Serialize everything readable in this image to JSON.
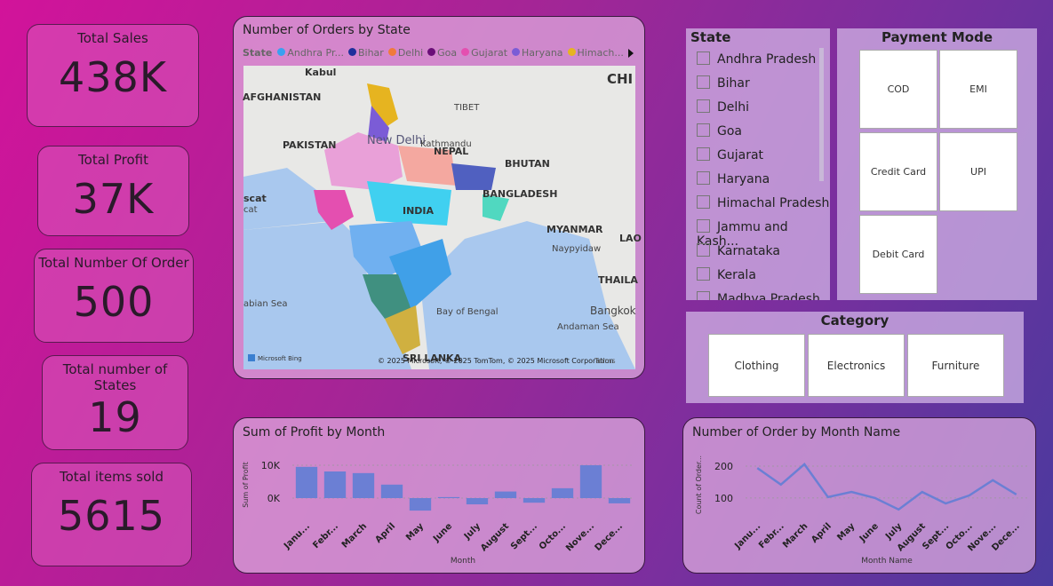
{
  "kpis": [
    {
      "label": "Total Sales",
      "value": "438K"
    },
    {
      "label": "Total Profit",
      "value": "37K"
    },
    {
      "label": "Total Number Of Order",
      "value": "500"
    },
    {
      "label": "Total number of States",
      "value": "19"
    },
    {
      "label": "Total items sold",
      "value": "5615"
    }
  ],
  "map": {
    "title": "Number of Orders by State",
    "legend_title": "State",
    "legend": [
      {
        "name": "Andhra Pr...",
        "color": "#3aa0f0"
      },
      {
        "name": "Bihar",
        "color": "#1f2f9c"
      },
      {
        "name": "Delhi",
        "color": "#f07a3b"
      },
      {
        "name": "Goa",
        "color": "#6a0e78"
      },
      {
        "name": "Gujarat",
        "color": "#e44fb0"
      },
      {
        "name": "Haryana",
        "color": "#7b5cd6"
      },
      {
        "name": "Himach...",
        "color": "#e6b420"
      }
    ],
    "labels": [
      "Kabul",
      "AFGHANISTAN",
      "CHI",
      "TIBET",
      "PAKISTAN",
      "New Delhi",
      "NEPAL",
      "Kathmandu",
      "BHUTAN",
      "BANGLADESH",
      "INDIA",
      "MYANMAR",
      "Naypyidaw",
      "LAO",
      "scat",
      "cat",
      "abian Sea",
      "Bay of Bengal",
      "Andaman Sea",
      "Bangkok",
      "THAILA",
      "SRI LANKA"
    ],
    "bing": "Microsoft Bing",
    "attribution": "© 2025 Microsoft, © 2025 TomTom, © 2025 Microsoft Corporation",
    "terms": "Terms"
  },
  "state_slicer": {
    "title": "State",
    "items": [
      "Andhra Pradesh",
      "Bihar",
      "Delhi",
      "Goa",
      "Gujarat",
      "Haryana",
      "Himachal Pradesh",
      "Jammu and Kash...",
      "Karnataka",
      "Kerala",
      "Madhya Pradesh"
    ]
  },
  "payment_slicer": {
    "title": "Payment Mode",
    "items": [
      "COD",
      "EMI",
      "Credit Card",
      "UPI",
      "Debit Card"
    ]
  },
  "category_slicer": {
    "title": "Category",
    "items": [
      "Clothing",
      "Electronics",
      "Furniture"
    ]
  },
  "chart_data": [
    {
      "type": "bar",
      "title": "Sum of Profit by Month",
      "x_label": "Month",
      "y_label": "Sum of Profit",
      "categories": [
        "Janu...",
        "Febr...",
        "March",
        "April",
        "May",
        "June",
        "July",
        "August",
        "Sept...",
        "Octo...",
        "Nove...",
        "Dece..."
      ],
      "values": [
        9500,
        8100,
        7600,
        4100,
        -3800,
        300,
        -1900,
        2000,
        -1400,
        3000,
        10000,
        -1600
      ],
      "color": "#6b7fd4",
      "ylim": [
        -5400,
        13500
      ],
      "yticks": [
        {
          "value": 0,
          "label": "0K"
        },
        {
          "value": 10000,
          "label": "10K"
        }
      ],
      "grid": true
    },
    {
      "type": "line",
      "title": "Number of Order by Month Name",
      "x_label": "Month Name",
      "y_label": "Count of Order...",
      "categories": [
        "Janu...",
        "Febr...",
        "March",
        "April",
        "May",
        "June",
        "July",
        "August",
        "Sept...",
        "Octo...",
        "Nove...",
        "Dece..."
      ],
      "values": [
        194,
        142,
        206,
        103,
        119,
        100,
        64,
        119,
        83,
        108,
        156,
        111
      ],
      "color": "#6b7fd4",
      "ylim": [
        44,
        239
      ],
      "yticks": [
        100,
        200
      ],
      "grid": true
    }
  ]
}
